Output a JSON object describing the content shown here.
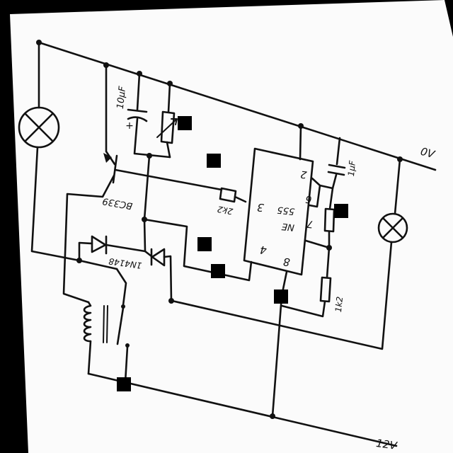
{
  "rails": {
    "top": "0V",
    "bottom": "12V"
  },
  "components": {
    "capacitor_top": {
      "value": "10µF",
      "polarity": "+"
    },
    "transistor": {
      "label": "BC339"
    },
    "resistor_base": {
      "value": "2k2"
    },
    "ic": {
      "line1": "NE",
      "line2": "555",
      "pins": {
        "p2": "2",
        "p3": "3",
        "p4": "4",
        "p6": "6",
        "p7": "7",
        "p8": "8"
      }
    },
    "capacitor_timing": {
      "value": "1µF"
    },
    "resistor_timing": {
      "value": "1k2"
    },
    "diodes": {
      "label": "1N4148"
    }
  },
  "colors": {
    "ink": "#111111",
    "paper": "#fbfbfb",
    "scan_border": "#000000"
  }
}
